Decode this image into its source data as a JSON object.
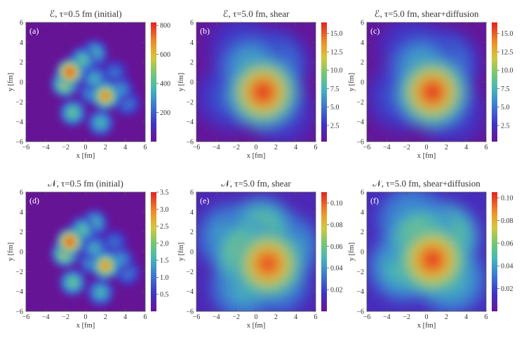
{
  "chart_data": [
    {
      "type": "heatmap",
      "panel_label": "(a)",
      "title": "ℰ, τ=0.5 fm (initial)",
      "xlabel": "x [fm]",
      "ylabel": "y [fm]",
      "xlim": [
        -6,
        6
      ],
      "ylim": [
        -6,
        6
      ],
      "xticks": [
        -6,
        -4,
        -2,
        0,
        2,
        4,
        6
      ],
      "yticks": [
        -6,
        -4,
        -2,
        0,
        2,
        4,
        6
      ],
      "colorbar": {
        "min": 0,
        "max": 820,
        "ticks": [
          200,
          400,
          600,
          800
        ],
        "tick_labels": [
          "200",
          "400",
          "600",
          "800"
        ]
      },
      "hotspots": [
        {
          "x": -1.6,
          "y": 1.0,
          "value": 800
        },
        {
          "x": -2.1,
          "y": -0.2,
          "value": 560
        },
        {
          "x": -0.3,
          "y": 2.2,
          "value": 420
        },
        {
          "x": 0.9,
          "y": 2.9,
          "value": 380
        },
        {
          "x": 0.9,
          "y": 0.3,
          "value": 360
        },
        {
          "x": 2.0,
          "y": -1.4,
          "value": 720
        },
        {
          "x": 0.6,
          "y": -1.0,
          "value": 320
        },
        {
          "x": 3.5,
          "y": -0.8,
          "value": 300
        },
        {
          "x": -1.3,
          "y": -3.1,
          "value": 440
        },
        {
          "x": 1.5,
          "y": -4.1,
          "value": 380
        },
        {
          "x": 4.2,
          "y": -2.1,
          "value": 260
        },
        {
          "x": 2.9,
          "y": 0.9,
          "value": 240
        }
      ]
    },
    {
      "type": "heatmap",
      "panel_label": "(b)",
      "title": "ℰ, τ=5.0 fm, shear",
      "xlabel": "x [fm]",
      "ylabel": "y [fm]",
      "xlim": [
        -6,
        6
      ],
      "ylim": [
        -6,
        6
      ],
      "xticks": [
        -6,
        -4,
        -2,
        0,
        2,
        4,
        6
      ],
      "yticks": [
        -6,
        -4,
        -2,
        0,
        2,
        4,
        6
      ],
      "colorbar": {
        "min": 0.3,
        "max": 16.5,
        "ticks": [
          2.5,
          5.0,
          7.5,
          10.0,
          12.5,
          15.0
        ],
        "tick_labels": [
          "2.5",
          "5.0",
          "7.5",
          "10.0",
          "12.5",
          "15.0"
        ]
      },
      "background": 0.5,
      "hotspots": [
        {
          "x": 0.7,
          "y": -1.0,
          "value": 16.5
        },
        {
          "x": -0.5,
          "y": 1.5,
          "value": 8.0
        },
        {
          "x": 1.8,
          "y": 1.8,
          "value": 6.5
        },
        {
          "x": -2.5,
          "y": -1.5,
          "value": 4.5
        },
        {
          "x": 2.5,
          "y": -3.0,
          "value": 4.0
        },
        {
          "x": -1.5,
          "y": 3.5,
          "value": 3.5
        }
      ]
    },
    {
      "type": "heatmap",
      "panel_label": "(c)",
      "title": "ℰ, τ=5.0 fm, shear+diffusion",
      "xlabel": "x [fm]",
      "ylabel": "y [fm]",
      "xlim": [
        -6,
        6
      ],
      "ylim": [
        -6,
        6
      ],
      "xticks": [
        -6,
        -4,
        -2,
        0,
        2,
        4,
        6
      ],
      "yticks": [
        -6,
        -4,
        -2,
        0,
        2,
        4,
        6
      ],
      "colorbar": {
        "min": 0.3,
        "max": 16.5,
        "ticks": [
          2.5,
          5.0,
          7.5,
          10.0,
          12.5,
          15.0
        ],
        "tick_labels": [
          "2.5",
          "5.0",
          "7.5",
          "10.0",
          "12.5",
          "15.0"
        ]
      },
      "background": 0.5,
      "hotspots": [
        {
          "x": 0.6,
          "y": -1.0,
          "value": 16.5
        },
        {
          "x": -0.5,
          "y": 1.5,
          "value": 8.0
        },
        {
          "x": 1.8,
          "y": 1.8,
          "value": 6.5
        },
        {
          "x": -2.5,
          "y": -1.5,
          "value": 4.5
        },
        {
          "x": 2.5,
          "y": -3.0,
          "value": 4.0
        },
        {
          "x": -1.5,
          "y": 3.5,
          "value": 3.5
        }
      ]
    },
    {
      "type": "heatmap",
      "panel_label": "(d)",
      "title": "𝒩, τ=0.5 fm (initial)",
      "xlabel": "x [fm]",
      "ylabel": "y [fm]",
      "xlim": [
        -6,
        6
      ],
      "ylim": [
        -6,
        6
      ],
      "xticks": [
        -6,
        -4,
        -2,
        0,
        2,
        4,
        6
      ],
      "yticks": [
        -6,
        -4,
        -2,
        0,
        2,
        4,
        6
      ],
      "colorbar": {
        "min": 0,
        "max": 3.5,
        "ticks": [
          0.5,
          1.0,
          1.5,
          2.0,
          2.5,
          3.0,
          3.5
        ],
        "tick_labels": [
          "0.5",
          "1.0",
          "1.5",
          "2.0",
          "2.5",
          "3.0",
          "3.5"
        ]
      },
      "hotspots": [
        {
          "x": -1.6,
          "y": 1.0,
          "value": 3.4
        },
        {
          "x": -2.1,
          "y": -0.2,
          "value": 2.4
        },
        {
          "x": -0.3,
          "y": 2.2,
          "value": 1.8
        },
        {
          "x": 0.9,
          "y": 2.9,
          "value": 1.6
        },
        {
          "x": 0.9,
          "y": 0.3,
          "value": 1.5
        },
        {
          "x": 2.0,
          "y": -1.4,
          "value": 3.0
        },
        {
          "x": 0.6,
          "y": -1.0,
          "value": 1.4
        },
        {
          "x": 3.5,
          "y": -0.8,
          "value": 1.3
        },
        {
          "x": -1.3,
          "y": -3.1,
          "value": 1.9
        },
        {
          "x": 1.5,
          "y": -4.1,
          "value": 1.6
        },
        {
          "x": 4.2,
          "y": -2.1,
          "value": 1.1
        },
        {
          "x": 2.9,
          "y": 0.9,
          "value": 1.0
        }
      ]
    },
    {
      "type": "heatmap",
      "panel_label": "(e)",
      "title": "𝒩, τ=5.0 fm, shear",
      "xlabel": "x [fm]",
      "ylabel": "y [fm]",
      "xlim": [
        -6,
        6
      ],
      "ylim": [
        -6,
        6
      ],
      "xticks": [
        -6,
        -4,
        -2,
        0,
        2,
        4,
        6
      ],
      "yticks": [
        -6,
        -4,
        -2,
        0,
        2,
        4,
        6
      ],
      "colorbar": {
        "min": 0.0,
        "max": 0.11,
        "ticks": [
          0.02,
          0.04,
          0.06,
          0.08,
          0.1
        ],
        "tick_labels": [
          "0.02",
          "0.04",
          "0.06",
          "0.08",
          "0.10"
        ]
      },
      "background": 0.01,
      "hotspots": [
        {
          "x": 1.2,
          "y": -1.2,
          "value": 0.105
        },
        {
          "x": -0.6,
          "y": -0.3,
          "value": 0.09
        },
        {
          "x": 0.5,
          "y": 2.0,
          "value": 0.07
        },
        {
          "x": -2.5,
          "y": 1.5,
          "value": 0.05
        },
        {
          "x": -1.2,
          "y": -3.5,
          "value": 0.05
        },
        {
          "x": 3.0,
          "y": 0.5,
          "value": 0.05
        },
        {
          "x": 2.0,
          "y": -3.0,
          "value": 0.045
        }
      ]
    },
    {
      "type": "heatmap",
      "panel_label": "(f)",
      "title": "𝒩, τ=5.0 fm, shear+diffusion",
      "xlabel": "x [fm]",
      "ylabel": "y [fm]",
      "xlim": [
        -6,
        6
      ],
      "ylim": [
        -6,
        6
      ],
      "xticks": [
        -6,
        -4,
        -2,
        0,
        2,
        4,
        6
      ],
      "yticks": [
        -6,
        -4,
        -2,
        0,
        2,
        4,
        6
      ],
      "colorbar": {
        "min": 0.0,
        "max": 0.105,
        "ticks": [
          0.02,
          0.04,
          0.06,
          0.08,
          0.1
        ],
        "tick_labels": [
          "0.02",
          "0.04",
          "0.06",
          "0.08",
          "0.10"
        ]
      },
      "background": 0.012,
      "hotspots": [
        {
          "x": 0.6,
          "y": -0.8,
          "value": 0.103
        },
        {
          "x": -0.5,
          "y": 1.2,
          "value": 0.075
        },
        {
          "x": 1.8,
          "y": 1.5,
          "value": 0.07
        },
        {
          "x": -2.3,
          "y": -1.5,
          "value": 0.055
        },
        {
          "x": 2.5,
          "y": -2.8,
          "value": 0.05
        },
        {
          "x": -1.5,
          "y": 3.2,
          "value": 0.045
        }
      ]
    }
  ]
}
